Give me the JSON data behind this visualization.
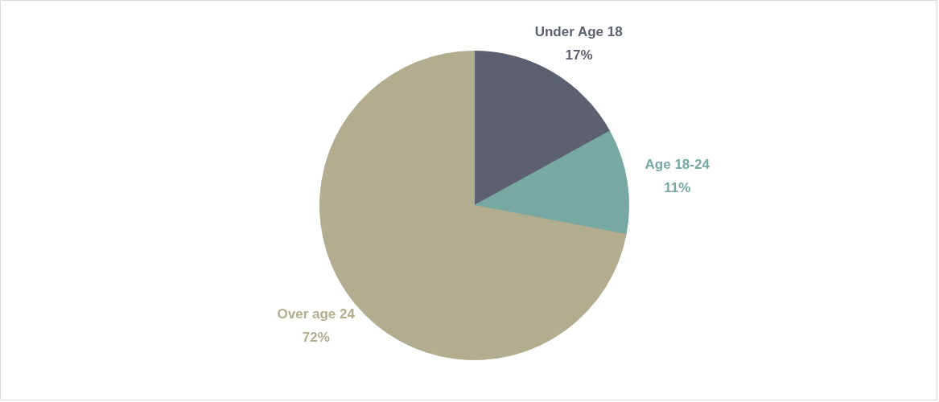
{
  "chart_data": {
    "type": "pie",
    "categories": [
      "Under Age 18",
      "Age 18-24",
      "Over age 24"
    ],
    "values": [
      17,
      11,
      72
    ],
    "colors": [
      "#5c6070",
      "#77a8a2",
      "#b1ad8e"
    ],
    "value_labels": [
      "17%",
      "11%",
      "72%"
    ]
  }
}
